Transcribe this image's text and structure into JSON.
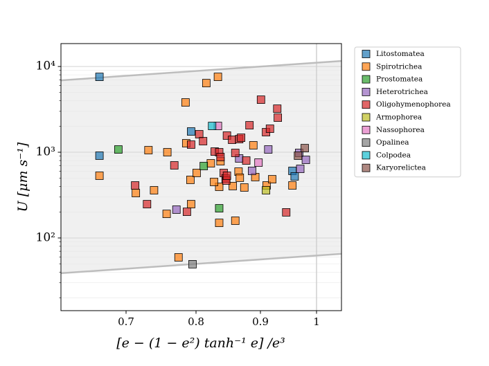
{
  "chart_data": {
    "type": "scatter",
    "xlabel": "[e − (1 − e²) tanh⁻¹ e] /e³",
    "ylabel": "U [μm s⁻¹]",
    "xlim": [
      0.607,
      1.044
    ],
    "xticks": [
      0.7,
      0.8,
      0.9,
      1
    ],
    "ylim": [
      14.2,
      18500
    ],
    "yscale": "log",
    "yticks": [
      {
        "value": 100,
        "label": "10²"
      },
      {
        "value": 1000,
        "label": "10³"
      },
      {
        "value": 10000,
        "label": "10⁴"
      }
    ],
    "yminorticks": [
      20,
      30,
      40,
      50,
      60,
      70,
      80,
      90,
      200,
      300,
      400,
      500,
      600,
      700,
      800,
      900,
      2000,
      3000,
      4000,
      5000,
      6000,
      7000,
      8000,
      9000
    ],
    "grid": true,
    "vline": 1,
    "bounds": {
      "x": [
        0.607,
        1.044
      ],
      "upper": [
        6900,
        11600
      ],
      "lower": [
        38.8,
        65.3
      ]
    },
    "legend": "outside-right",
    "series": [
      {
        "name": "Litostomatea",
        "color": "#1f77b4",
        "x": [
          0.662,
          0.662,
          0.793,
          0.957,
          0.961
        ],
        "values": [
          7570,
          912,
          1746,
          606,
          522
        ]
      },
      {
        "name": "Spirotrichea",
        "color": "#ff7f0e",
        "x": [
          0.662,
          0.785,
          0.834,
          0.816,
          0.758,
          0.732,
          0.714,
          0.759,
          0.74,
          0.786,
          0.792,
          0.793,
          0.801,
          0.823,
          0.838,
          0.836,
          0.836,
          0.857,
          0.866,
          0.868,
          0.875,
          0.892,
          0.889,
          0.911,
          0.921,
          0.957,
          0.861,
          0.775,
          0.828
        ],
        "values": [
          532,
          3810,
          7570,
          6400,
          191,
          1057,
          334,
          1000,
          360,
          1273,
          476,
          248,
          573,
          743,
          785,
          395,
          150,
          403,
          594,
          504,
          388,
          513,
          1205,
          410,
          484,
          410,
          159,
          59.4,
          450
        ]
      },
      {
        "name": "Prostomatea",
        "color": "#2ca02c",
        "x": [
          0.689,
          0.812,
          0.836
        ],
        "values": [
          1077,
          690,
          222
        ]
      },
      {
        "name": "Heterotrichea",
        "color": "#9467bd",
        "x": [
          0.772,
          0.867,
          0.887,
          0.914,
          0.969,
          0.971,
          0.981
        ],
        "values": [
          214,
          846,
          606,
          1077,
          982,
          640,
          815
        ]
      },
      {
        "name": "Oligohymenophorea",
        "color": "#d62728",
        "x": [
          0.713,
          0.73,
          0.769,
          0.787,
          0.793,
          0.805,
          0.811,
          0.829,
          0.836,
          0.838,
          0.848,
          0.856,
          0.861,
          0.867,
          0.87,
          0.878,
          0.883,
          0.901,
          0.91,
          0.917,
          0.93,
          0.931,
          0.946,
          0.843,
          0.846,
          0.847,
          0.848
        ],
        "values": [
          410,
          248,
          703,
          202,
          1227,
          1622,
          1346,
          1018,
          1000,
          879,
          1563,
          1397,
          982,
          1422,
          1476,
          800,
          2063,
          4100,
          1714,
          1880,
          3220,
          2530,
          199,
          573,
          494,
          467,
          532
        ]
      },
      {
        "name": "Armophorea",
        "color": "#bcbd22",
        "x": [
          0.91
        ],
        "values": [
          360
        ]
      },
      {
        "name": "Nassophorea",
        "color": "#e377c2",
        "x": [
          0.834,
          0.897
        ],
        "values": [
          2025,
          757
        ]
      },
      {
        "name": "Opalinea",
        "color": "#7f7f7f",
        "x": [
          0.795
        ],
        "values": [
          49.4
        ]
      },
      {
        "name": "Colpodea",
        "color": "#17becf",
        "x": [
          0.825
        ],
        "values": [
          2025
        ]
      },
      {
        "name": "Karyorelictea",
        "color": "#8c564b",
        "x": [
          0.979,
          0.967
        ],
        "values": [
          1117,
          912
        ]
      }
    ]
  }
}
